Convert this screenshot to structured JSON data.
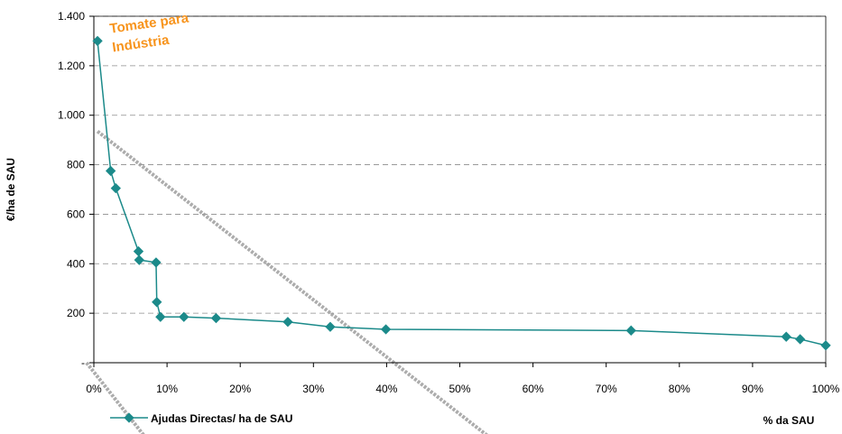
{
  "chart_data": {
    "type": "line",
    "ylabel": "€/ha de SAU",
    "xlabel": "% da SAU",
    "x_tick_labels": [
      "0%",
      "10%",
      "20%",
      "30%",
      "40%",
      "50%",
      "60%",
      "70%",
      "80%",
      "90%",
      "100%"
    ],
    "y_tick_labels": [
      "-",
      "200",
      "400",
      "600",
      "800",
      "1.000",
      "1.200",
      "1.400"
    ],
    "xlim": [
      0,
      100
    ],
    "ylim": [
      0,
      1400
    ],
    "grid": "horizontal dashed",
    "legend_position": "bottom-left",
    "annotation": {
      "lines": [
        "Tomate para",
        "Indústria"
      ],
      "color": "#F7941D"
    },
    "series": [
      {
        "name": "Ajudas Directas/ ha de SAU",
        "color": "#1B8A8A",
        "x": [
          0.5,
          2.3,
          3.0,
          6.1,
          6.2,
          8.5,
          8.6,
          9.1,
          12.3,
          16.7,
          26.5,
          32.3,
          39.9,
          73.4,
          94.6,
          96.5,
          100.0
        ],
        "y": [
          1300,
          775,
          705,
          450,
          415,
          405,
          245,
          185,
          185,
          180,
          165,
          145,
          135,
          130,
          105,
          95,
          70
        ]
      }
    ],
    "trendlines": [
      {
        "style": "dashed",
        "color": "#9E9E9E",
        "x": [
          0.5,
          54.0
        ],
        "y": [
          935,
          -300
        ]
      },
      {
        "style": "dashed",
        "color": "#9E9E9E",
        "x": [
          -1.0,
          7.0
        ],
        "y": [
          0,
          -300
        ]
      }
    ]
  }
}
